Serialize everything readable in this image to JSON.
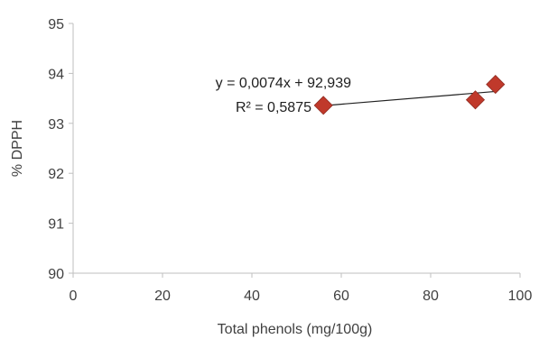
{
  "chart_data": {
    "type": "scatter",
    "title": "",
    "xlabel": "Total phenols (mg/100g)",
    "ylabel": "% DPPH",
    "xlim": [
      0,
      100
    ],
    "ylim": [
      90,
      95
    ],
    "x_ticks": [
      "0",
      "20",
      "40",
      "60",
      "80",
      "100"
    ],
    "y_ticks": [
      "90",
      "91",
      "92",
      "93",
      "94",
      "95"
    ],
    "grid": false,
    "series": [
      {
        "marker": "diamond",
        "color": "#c0392b",
        "points": [
          {
            "x": 56,
            "y": 93.36
          },
          {
            "x": 90,
            "y": 93.47
          },
          {
            "x": 94.5,
            "y": 93.78
          }
        ]
      }
    ],
    "trendline": {
      "type": "linear",
      "x_range": [
        56,
        94.5
      ],
      "slope": 0.0074,
      "intercept": 92.939,
      "color": "#202020"
    },
    "annotations": {
      "equation": "y = 0,0074x + 92,939",
      "r_squared": "R² = 0,5875"
    }
  }
}
